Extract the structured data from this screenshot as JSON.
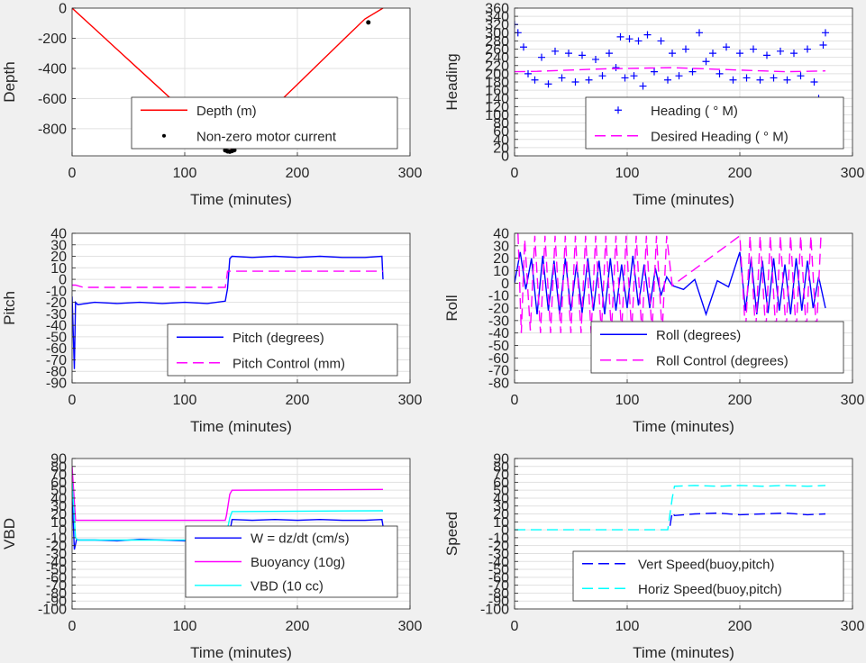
{
  "colors": {
    "background": "#f0f0f0",
    "axes_bg": "#ffffff",
    "grid": "#e1e1e1",
    "text": "#262626",
    "red": "#ff0000",
    "blue": "#0000ff",
    "magenta": "#ff00ff",
    "cyan": "#00ffff",
    "black": "#000000"
  },
  "chart_data": [
    {
      "id": "depth",
      "type": "line",
      "xlabel": "Time (minutes)",
      "ylabel": "Depth",
      "xlim": [
        0,
        300
      ],
      "ylim": [
        -980,
        0
      ],
      "xticks": [
        0,
        100,
        200,
        300
      ],
      "yticks": [
        0,
        -200,
        -400,
        -600,
        -800
      ],
      "grid": true,
      "legend_location": "lower-right",
      "series": [
        {
          "name": "Depth (m)",
          "style": "line",
          "color": "#ff0000",
          "x": [
            0,
            20,
            40,
            60,
            80,
            100,
            120,
            138,
            141,
            160,
            180,
            200,
            220,
            240,
            260,
            276
          ],
          "y": [
            0,
            -137,
            -274,
            -411,
            -548,
            -685,
            -822,
            -945,
            -940,
            -797,
            -651,
            -506,
            -361,
            -216,
            -72,
            0
          ]
        },
        {
          "name": "Non-zero motor current",
          "style": "dots",
          "color": "#000000",
          "x": [
            136,
            138,
            140,
            142,
            144,
            263
          ],
          "y": [
            -943,
            -950,
            -952,
            -948,
            -942,
            -95
          ]
        }
      ]
    },
    {
      "id": "heading",
      "type": "scatter",
      "xlabel": "Time (minutes)",
      "ylabel": "Heading",
      "xlim": [
        0,
        300
      ],
      "ylim": [
        0,
        360
      ],
      "xticks": [
        0,
        100,
        200,
        300
      ],
      "yticks": [
        0,
        20,
        40,
        60,
        80,
        100,
        120,
        140,
        160,
        180,
        200,
        220,
        240,
        260,
        280,
        300,
        320,
        340,
        360
      ],
      "grid": true,
      "legend_location": "lower-right",
      "series": [
        {
          "name": "Heading (  ° M)",
          "style": "plus",
          "color": "#0000ff",
          "x": [
            0,
            3,
            8,
            12,
            18,
            24,
            30,
            36,
            42,
            48,
            54,
            60,
            66,
            72,
            78,
            84,
            90,
            94,
            98,
            102,
            106,
            110,
            114,
            118,
            124,
            130,
            136,
            140,
            146,
            152,
            158,
            164,
            170,
            176,
            182,
            188,
            194,
            200,
            206,
            212,
            218,
            224,
            230,
            236,
            242,
            248,
            254,
            260,
            266,
            270,
            274,
            276
          ],
          "y": [
            320,
            300,
            265,
            200,
            185,
            240,
            175,
            255,
            190,
            250,
            180,
            245,
            185,
            235,
            195,
            250,
            215,
            290,
            190,
            285,
            195,
            280,
            170,
            295,
            205,
            280,
            185,
            250,
            195,
            260,
            205,
            300,
            230,
            250,
            200,
            265,
            185,
            250,
            190,
            260,
            185,
            245,
            190,
            255,
            185,
            250,
            195,
            260,
            180,
            140,
            270,
            300
          ]
        },
        {
          "name": "Desired Heading (    ° M)",
          "style": "dash",
          "color": "#ff00ff",
          "x": [
            0,
            20,
            40,
            60,
            80,
            100,
            120,
            140,
            160,
            180,
            200,
            220,
            240,
            260,
            276
          ],
          "y": [
            205,
            206,
            208,
            210,
            212,
            213,
            214,
            215,
            213,
            211,
            209,
            207,
            205,
            206,
            207
          ]
        }
      ]
    },
    {
      "id": "pitch",
      "type": "line",
      "xlabel": "Time (minutes)",
      "ylabel": "Pitch",
      "xlim": [
        0,
        300
      ],
      "ylim": [
        -90,
        40
      ],
      "xticks": [
        0,
        100,
        200,
        300
      ],
      "yticks": [
        40,
        30,
        20,
        10,
        0,
        -10,
        -20,
        -30,
        -40,
        -50,
        -60,
        -70,
        -80,
        -90
      ],
      "grid": true,
      "legend_location": "lower-right",
      "series": [
        {
          "name": "Pitch (degrees)",
          "style": "line",
          "color": "#0000ff",
          "x": [
            0,
            2,
            3,
            5,
            20,
            40,
            60,
            80,
            100,
            120,
            136,
            138,
            140,
            142,
            160,
            180,
            200,
            220,
            240,
            260,
            275,
            276
          ],
          "y": [
            -15,
            -78,
            -20,
            -22,
            -20,
            -21,
            -20,
            -21,
            -20,
            -21,
            -19,
            -8,
            18,
            20,
            19,
            20,
            19,
            20,
            19,
            19,
            20,
            0
          ]
        },
        {
          "name": "Pitch Control (mm)",
          "style": "dash",
          "color": "#ff00ff",
          "x": [
            0,
            3,
            10,
            136,
            137,
            138,
            276
          ],
          "y": [
            -5,
            -5,
            -7,
            -7,
            0,
            7,
            7
          ]
        }
      ]
    },
    {
      "id": "roll",
      "type": "line",
      "xlabel": "Time (minutes)",
      "ylabel": "Roll",
      "xlim": [
        0,
        300
      ],
      "ylim": [
        -80,
        40
      ],
      "xticks": [
        0,
        100,
        200,
        300
      ],
      "yticks": [
        40,
        30,
        20,
        10,
        0,
        -10,
        -20,
        -30,
        -40,
        -50,
        -60,
        -70,
        -80
      ],
      "grid": true,
      "legend_location": "lower-right",
      "series": [
        {
          "name": "Roll (degrees)",
          "style": "line",
          "color": "#0000ff",
          "x": [
            0,
            5,
            10,
            15,
            20,
            25,
            30,
            35,
            40,
            45,
            50,
            55,
            60,
            65,
            70,
            75,
            80,
            85,
            90,
            95,
            100,
            105,
            110,
            115,
            120,
            125,
            130,
            135,
            140,
            150,
            160,
            170,
            180,
            190,
            200,
            205,
            210,
            215,
            220,
            225,
            230,
            235,
            240,
            245,
            250,
            255,
            260,
            265,
            270,
            276
          ],
          "y": [
            0,
            25,
            -5,
            20,
            -25,
            22,
            -22,
            18,
            -25,
            20,
            -22,
            15,
            -24,
            20,
            -22,
            18,
            -25,
            20,
            -22,
            15,
            -20,
            22,
            -18,
            15,
            -20,
            12,
            -10,
            5,
            -2,
            -5,
            3,
            -25,
            2,
            -3,
            25,
            -22,
            20,
            -25,
            18,
            -24,
            20,
            -22,
            15,
            -25,
            20,
            -22,
            18,
            -20,
            5,
            -20
          ]
        },
        {
          "name": "Roll Control (degrees)",
          "style": "dash",
          "color": "#ff00ff",
          "x": [
            3,
            6,
            9,
            14,
            18,
            23,
            27,
            32,
            36,
            41,
            45,
            50,
            54,
            59,
            63,
            68,
            72,
            77,
            81,
            86,
            90,
            95,
            99,
            104,
            108,
            113,
            117,
            122,
            126,
            131,
            135,
            140,
            200,
            205,
            209,
            214,
            218,
            223,
            227,
            232,
            236,
            241,
            245,
            250,
            254,
            259,
            263,
            268,
            272
          ],
          "y": [
            40,
            -40,
            35,
            -38,
            38,
            -40,
            38,
            -40,
            38,
            -40,
            38,
            -40,
            38,
            -40,
            38,
            -40,
            38,
            -40,
            38,
            -40,
            38,
            -40,
            38,
            -40,
            38,
            -40,
            38,
            -40,
            38,
            -40,
            38,
            -2,
            38,
            -40,
            38,
            -40,
            38,
            -40,
            38,
            -40,
            38,
            -40,
            38,
            -40,
            38,
            -40,
            38,
            -40,
            38
          ]
        }
      ]
    },
    {
      "id": "vbd",
      "type": "line",
      "xlabel": "Time (minutes)",
      "ylabel": "VBD",
      "xlim": [
        0,
        300
      ],
      "ylim": [
        -100,
        90
      ],
      "xticks": [
        0,
        100,
        200,
        300
      ],
      "yticks": [
        90,
        80,
        70,
        60,
        50,
        40,
        30,
        20,
        10,
        0,
        -10,
        -20,
        -30,
        -40,
        -50,
        -60,
        -70,
        -80,
        -90,
        -100
      ],
      "grid": true,
      "legend_location": "lower-right",
      "series": [
        {
          "name": "W = dz/dt (cm/s)",
          "style": "line",
          "color": "#0000ff",
          "x": [
            0,
            2,
            4,
            6,
            20,
            40,
            60,
            80,
            100,
            120,
            137,
            140,
            142,
            160,
            180,
            200,
            220,
            240,
            260,
            275,
            276
          ],
          "y": [
            45,
            -25,
            -12,
            -13,
            -13,
            -14,
            -12,
            -13,
            -14,
            -12,
            -13,
            -3,
            13,
            12,
            13,
            12,
            13,
            12,
            12,
            13,
            5
          ]
        },
        {
          "name": "Buoyancy (10g)",
          "style": "line",
          "color": "#ff00ff",
          "x": [
            0,
            3,
            5,
            136,
            137,
            140,
            142,
            276
          ],
          "y": [
            80,
            12,
            12,
            12,
            18,
            45,
            50,
            51
          ]
        },
        {
          "name": "VBD (10 cc)",
          "style": "line",
          "color": "#00ffff",
          "x": [
            0,
            3,
            5,
            136,
            137,
            140,
            142,
            276
          ],
          "y": [
            60,
            -10,
            -13,
            -13,
            -5,
            15,
            23,
            24
          ]
        }
      ]
    },
    {
      "id": "speed",
      "type": "line",
      "xlabel": "Time (minutes)",
      "ylabel": "Speed",
      "xlim": [
        0,
        300
      ],
      "ylim": [
        -100,
        90
      ],
      "xticks": [
        0,
        100,
        200,
        300
      ],
      "yticks": [
        90,
        80,
        70,
        60,
        50,
        40,
        30,
        20,
        10,
        0,
        -10,
        -20,
        -30,
        -40,
        -50,
        -60,
        -70,
        -80,
        -90,
        -100
      ],
      "grid": true,
      "legend_location": "lower-right",
      "series": [
        {
          "name": "Vert Speed(buoy,pitch)",
          "style": "dash",
          "color": "#0000ff",
          "x": [
            138,
            140,
            142,
            160,
            180,
            200,
            220,
            240,
            260,
            276
          ],
          "y": [
            5,
            22,
            18,
            20,
            21,
            19,
            20,
            21,
            19,
            20
          ]
        },
        {
          "name": "Horiz Speed(buoy,pitch)",
          "style": "dash",
          "color": "#00ffff",
          "x": [
            0,
            20,
            40,
            60,
            80,
            100,
            120,
            136,
            138,
            140,
            142,
            160,
            180,
            200,
            220,
            240,
            260,
            276
          ],
          "y": [
            0,
            0,
            0,
            0,
            0,
            0,
            0,
            0,
            20,
            40,
            55,
            56,
            55,
            56,
            55,
            56,
            55,
            56
          ]
        }
      ]
    }
  ]
}
